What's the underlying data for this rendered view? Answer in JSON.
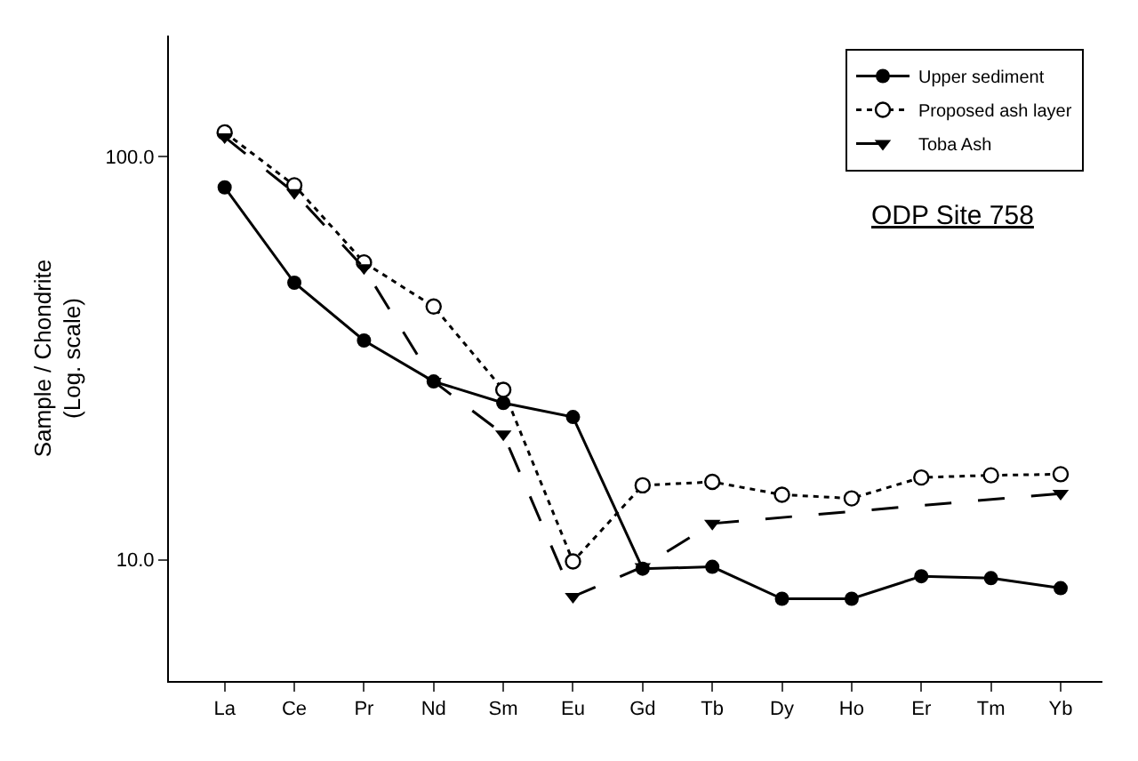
{
  "chart_data": {
    "type": "line",
    "ylabel": "Sample / Chondrite\n(Log. scale)",
    "log": true,
    "ylim": [
      5,
      200
    ],
    "yticks": [
      {
        "value": 10,
        "label": "10.0"
      },
      {
        "value": 100,
        "label": "100.0"
      }
    ],
    "legend": "top right",
    "categories": [
      "La",
      "Ce",
      "Pr",
      "Nd",
      "Sm",
      "Eu",
      "Gd",
      "Tb",
      "Dy",
      "Ho",
      "Er",
      "Tm",
      "Yb"
    ],
    "annotations": [
      "ODP Site 758"
    ],
    "series": [
      {
        "name": "Upper sediment",
        "color": "#000000",
        "marker": "circle",
        "line_style": "solid",
        "values": [
          84,
          48.7,
          35,
          27.7,
          24.5,
          22.6,
          9.5,
          9.6,
          8.0,
          8.0,
          9.1,
          9.0,
          8.5
        ]
      },
      {
        "name": "Proposed ash layer",
        "color": "#000000",
        "marker": "circle-open",
        "line_style": "dotted",
        "values": [
          115,
          85,
          54.7,
          42.5,
          26.4,
          9.9,
          15.3,
          15.6,
          14.5,
          14.2,
          16.0,
          16.2,
          16.3
        ]
      },
      {
        "name": "Toba Ash",
        "color": "#000000",
        "marker": "triangle",
        "line_style": "dashed",
        "values": [
          112,
          81.5,
          53,
          27.7,
          20.5,
          8.1,
          9.6,
          12.3,
          null,
          null,
          null,
          null,
          14.6
        ]
      }
    ]
  }
}
